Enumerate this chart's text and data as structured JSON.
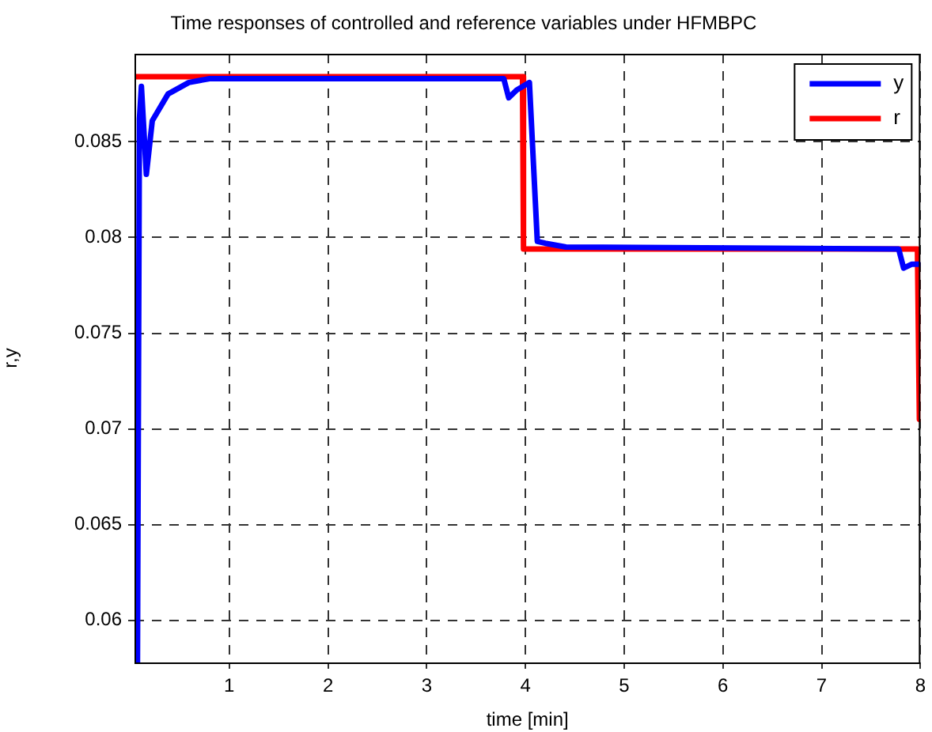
{
  "chart_data": {
    "type": "line",
    "title": "Time responses of controlled and reference variables under HFMBPC",
    "xlabel": "time [min]",
    "ylabel": "r,y",
    "series": [
      {
        "name": "y",
        "color": "#0000ff",
        "x": [
          0.07,
          0.09,
          0.11,
          0.16,
          0.22,
          0.38,
          0.59,
          0.8,
          3.78,
          3.83,
          3.91,
          4.04,
          4.12,
          4.2,
          4.41,
          7.78,
          7.83,
          7.91,
          7.99
        ],
        "values": [
          0.0578,
          0.0862,
          0.0879,
          0.0833,
          0.0861,
          0.0875,
          0.0881,
          0.0883,
          0.0883,
          0.0873,
          0.0877,
          0.0881,
          0.0798,
          0.0797,
          0.0795,
          0.0794,
          0.0784,
          0.0786,
          0.0786
        ]
      },
      {
        "name": "r",
        "color": "#ff0000",
        "x": [
          0.04,
          3.97,
          3.98,
          7.97,
          7.99
        ],
        "values": [
          0.0884,
          0.0884,
          0.0794,
          0.0794,
          0.0705
        ]
      }
    ],
    "xlim": [
      0.04,
      8
    ],
    "xticks": [
      1,
      2,
      3,
      4,
      5,
      6,
      7,
      8
    ],
    "ylim": [
      0.0578,
      0.0896
    ],
    "yticks": [
      0.06,
      0.065,
      0.07,
      0.075,
      0.08,
      0.085
    ],
    "grid": true,
    "legend": "top right",
    "marker": "none",
    "line_style": "solid"
  }
}
